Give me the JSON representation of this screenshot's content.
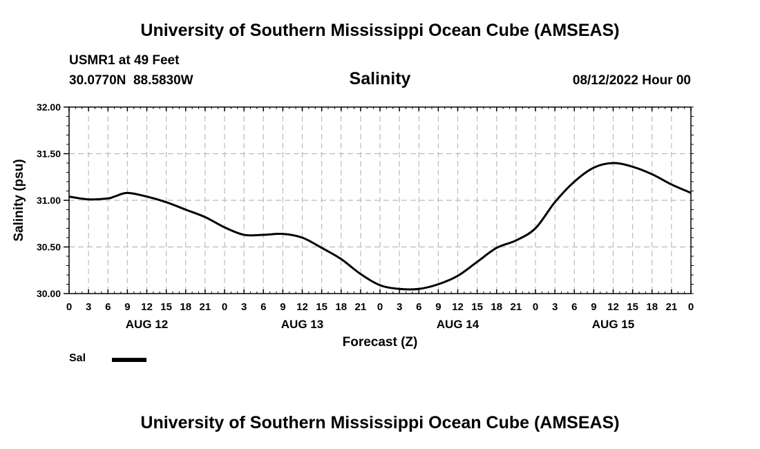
{
  "header": {
    "title": "University of Southern Mississippi Ocean Cube (AMSEAS)",
    "station": "USMR1 at 49 Feet",
    "coords": "30.0770N  88.5830W",
    "datetime": "08/12/2022 Hour 00"
  },
  "footer": {
    "title": "University of Southern Mississippi Ocean Cube (AMSEAS)"
  },
  "legend": {
    "label": "Sal"
  },
  "colors": {
    "line": "#000000",
    "grid": "#bbbbbb"
  },
  "chart_data": {
    "type": "line",
    "title": "Salinity",
    "xlabel": "Forecast (Z)",
    "ylabel": "Salinity (psu)",
    "xlim": [
      0,
      96
    ],
    "ylim": [
      30.0,
      32.0
    ],
    "yticks": [
      "30.00",
      "30.50",
      "31.00",
      "31.50",
      "32.00"
    ],
    "xtick_labels": [
      "0",
      "3",
      "6",
      "9",
      "12",
      "15",
      "18",
      "21",
      "0",
      "3",
      "6",
      "9",
      "12",
      "15",
      "18",
      "21",
      "0",
      "3",
      "6",
      "9",
      "12",
      "15",
      "18",
      "21",
      "0",
      "3",
      "6",
      "9",
      "12",
      "15",
      "18",
      "21",
      "0"
    ],
    "day_labels": [
      {
        "label": "AUG 12",
        "hour": 12
      },
      {
        "label": "AUG 13",
        "hour": 36
      },
      {
        "label": "AUG 14",
        "hour": 60
      },
      {
        "label": "AUG 15",
        "hour": 84
      }
    ],
    "grid": true,
    "series": [
      {
        "name": "Sal",
        "x": [
          0,
          3,
          6,
          7,
          9,
          12,
          15,
          18,
          21,
          24,
          27,
          30,
          33,
          36,
          39,
          42,
          45,
          48,
          51,
          54,
          57,
          60,
          63,
          66,
          69,
          72,
          75,
          78,
          81,
          84,
          87,
          90,
          93,
          96
        ],
        "values": [
          31.04,
          31.01,
          31.02,
          31.04,
          31.08,
          31.04,
          30.98,
          30.9,
          30.82,
          30.71,
          30.63,
          30.63,
          30.64,
          30.6,
          30.49,
          30.37,
          30.21,
          30.09,
          30.05,
          30.05,
          30.1,
          30.19,
          30.34,
          30.49,
          30.57,
          30.7,
          30.98,
          31.2,
          31.35,
          31.4,
          31.36,
          31.28,
          31.17,
          31.08
        ]
      }
    ]
  }
}
